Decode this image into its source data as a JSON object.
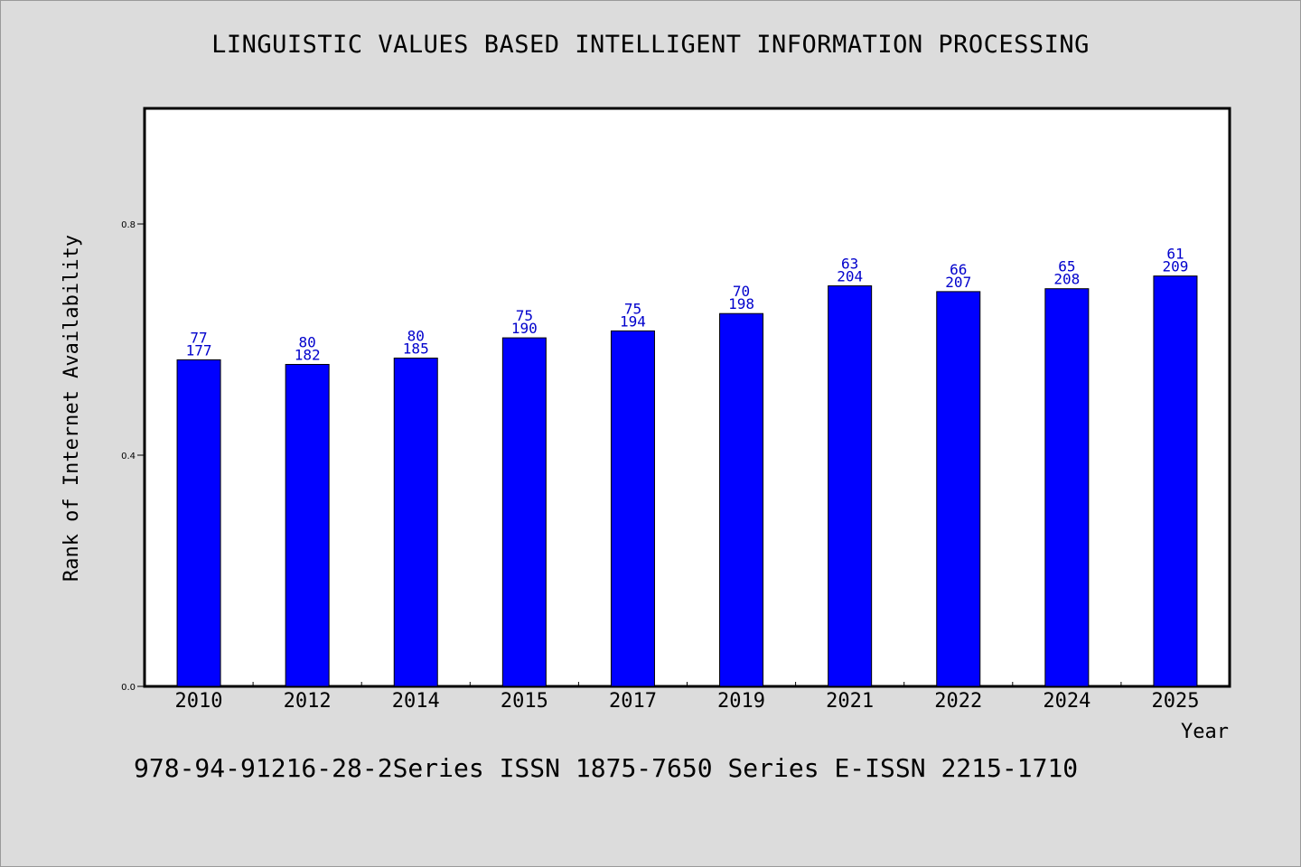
{
  "chart_data": {
    "type": "bar",
    "title": "LINGUISTIC VALUES BASED INTELLIGENT INFORMATION PROCESSING",
    "xlabel": "Year",
    "ylabel": "Rank of Internet Availability",
    "categories": [
      "2010",
      "2012",
      "2014",
      "2015",
      "2017",
      "2019",
      "2021",
      "2022",
      "2024",
      "2025"
    ],
    "values": [
      0.565,
      0.557,
      0.568,
      0.603,
      0.615,
      0.645,
      0.693,
      0.683,
      0.688,
      0.71
    ],
    "labels_top": [
      "77",
      "80",
      "80",
      "75",
      "75",
      "70",
      "63",
      "66",
      "65",
      "61"
    ],
    "labels_bottom": [
      "177",
      "182",
      "185",
      "190",
      "194",
      "198",
      "204",
      "207",
      "208",
      "209"
    ],
    "ylim": [
      0,
      1.0
    ],
    "yticks": [
      "0.0",
      "0.4",
      "0.8"
    ],
    "ytick_values": [
      0.0,
      0.4,
      0.8
    ],
    "grid": false,
    "bar_color": "#0000ff",
    "label_color": "#0000cc"
  },
  "footer": "978-94-91216-28-2Series ISSN 1875-7650 Series E-ISSN 2215-1710"
}
